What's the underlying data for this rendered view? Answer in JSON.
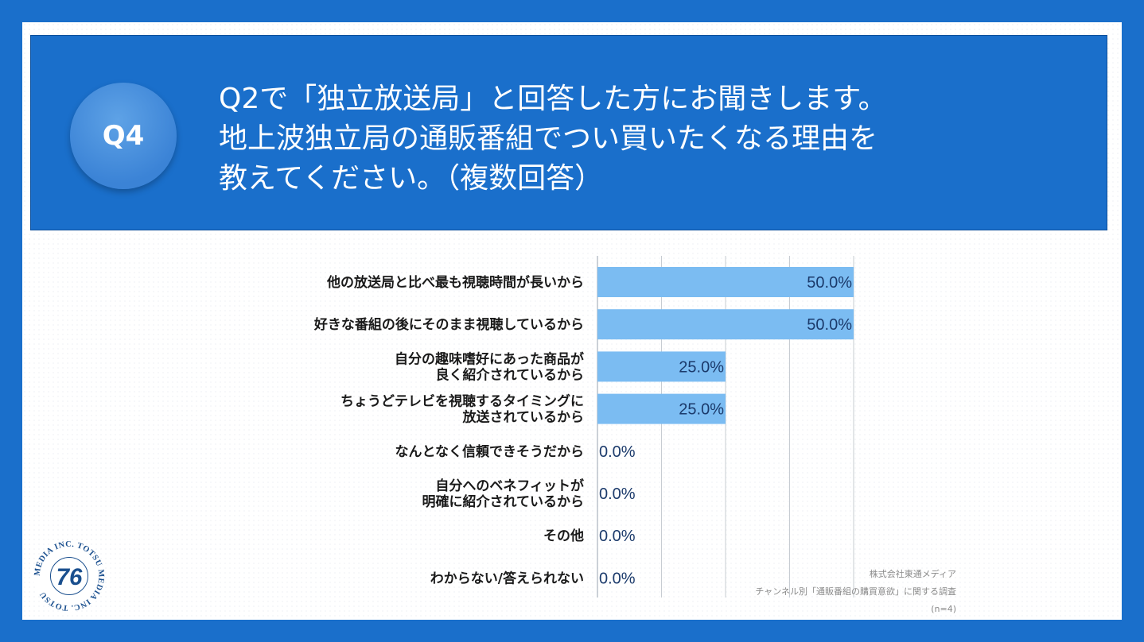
{
  "header": {
    "badge": "Q4",
    "question_lines": [
      "Q2で「独立放送局」と回答した方にお聞きします。",
      "地上波独立局の通販番組でつい買いたくなる理由を",
      "教えてください。（複数回答）"
    ]
  },
  "chart_data": {
    "type": "bar",
    "orientation": "horizontal",
    "categories": [
      [
        "他の放送局と比べ最も視聴時間が長いから"
      ],
      [
        "好きな番組の後にそのまま視聴しているから"
      ],
      [
        "自分の趣味嗜好にあった商品が",
        "良く紹介されているから"
      ],
      [
        "ちょうどテレビを視聴するタイミングに",
        "放送されているから"
      ],
      [
        "なんとなく信頼できそうだから"
      ],
      [
        "自分へのベネフィットが",
        "明確に紹介されているから"
      ],
      [
        "その他"
      ],
      [
        "わからない/答えられない"
      ]
    ],
    "values": [
      50.0,
      50.0,
      25.0,
      25.0,
      0.0,
      0.0,
      0.0,
      0.0
    ],
    "value_labels": [
      "50.0%",
      "50.0%",
      "25.0%",
      "25.0%",
      "0.0%",
      "0.0%",
      "0.0%",
      "0.0%"
    ],
    "xlim": [
      0,
      50
    ],
    "grid": true,
    "bar_color": "#7bbcf2",
    "label_color": "#1b3a6b"
  },
  "credit": {
    "company": "株式会社東通メディア",
    "survey": "チャンネル別「通販番組の購買意欲」に関する調査",
    "n": "(n=4)"
  },
  "logo": {
    "ring_text": "MEDIA INC. TOTSU MEDIA INC. TOTSU",
    "mark": "76"
  },
  "colors": {
    "frame": "#1a6fcb",
    "badge": "#3b83d6"
  }
}
